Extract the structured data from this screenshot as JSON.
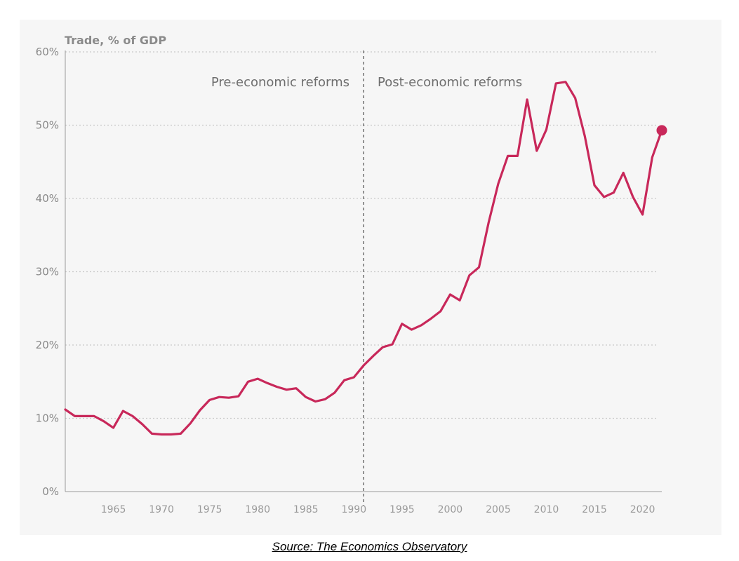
{
  "chart_data": {
    "type": "line",
    "ylabel": "Trade, % of GDP",
    "ylim": [
      0,
      60
    ],
    "yticks": [
      "0%",
      "10%",
      "20%",
      "30%",
      "40%",
      "50%",
      "60%"
    ],
    "yticks_values": [
      0,
      10,
      20,
      30,
      40,
      50,
      60
    ],
    "xlim": [
      1960,
      2022
    ],
    "xticks": [
      "1965",
      "1970",
      "1975",
      "1980",
      "1985",
      "1990",
      "1995",
      "2000",
      "2005",
      "2010",
      "2015",
      "2020"
    ],
    "xticks_values": [
      1965,
      1970,
      1975,
      1980,
      1985,
      1990,
      1995,
      2000,
      2005,
      2010,
      2015,
      2020
    ],
    "grid": "horizontal dotted",
    "line_color": "#c8285a",
    "reference_line": {
      "x": 1991
    },
    "annotations": {
      "left": "Pre-economic reforms",
      "right": "Post-economic reforms"
    },
    "series": [
      {
        "x": [
          1960,
          1961,
          1962,
          1963,
          1964,
          1965,
          1966,
          1967,
          1968,
          1969,
          1970,
          1971,
          1972,
          1973,
          1974,
          1975,
          1976,
          1977,
          1978,
          1979,
          1980,
          1981,
          1982,
          1983,
          1984,
          1985,
          1986,
          1987,
          1988,
          1989,
          1990,
          1991,
          1992,
          1993,
          1994,
          1995,
          1996,
          1997,
          1998,
          1999,
          2000,
          2001,
          2002,
          2003,
          2004,
          2005,
          2006,
          2007,
          2008,
          2009,
          2010,
          2011,
          2012,
          2013,
          2014,
          2015,
          2016,
          2017,
          2018,
          2019,
          2020,
          2021,
          2022
        ],
        "values": [
          11.2,
          10.3,
          10.3,
          10.3,
          9.6,
          8.7,
          11.0,
          10.3,
          9.2,
          7.9,
          7.8,
          7.8,
          7.9,
          9.3,
          11.1,
          12.5,
          12.9,
          12.8,
          13.0,
          15.0,
          15.4,
          14.8,
          14.3,
          13.9,
          14.1,
          12.9,
          12.3,
          12.6,
          13.5,
          15.2,
          15.6,
          17.2,
          18.5,
          19.7,
          20.1,
          22.9,
          22.1,
          22.7,
          23.6,
          24.6,
          26.9,
          26.1,
          29.5,
          30.6,
          36.7,
          42.0,
          45.8,
          45.8,
          53.5,
          46.5,
          49.4,
          55.7,
          55.9,
          53.7,
          48.5,
          41.8,
          40.2,
          40.8,
          43.5,
          40.2,
          37.8,
          45.6,
          49.3
        ]
      }
    ],
    "end_marker": {
      "x": 2022,
      "y": 49.3
    }
  },
  "source": "Source: The Economics Observatory"
}
